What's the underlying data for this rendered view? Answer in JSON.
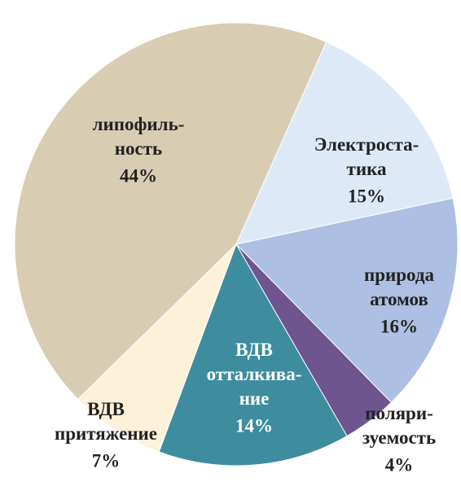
{
  "chart_data": {
    "type": "pie",
    "categories": [
      "Электроста-\nтика",
      "природа\nатомов",
      "поляри-\nзуемость",
      "ВДВ\nотталкива-\nние",
      "ВДВ\nпритяжение",
      "липофиль-\nность"
    ],
    "values": [
      15,
      16,
      4,
      14,
      7,
      44
    ],
    "value_labels": [
      "15%",
      "16%",
      "4%",
      "14%",
      "7%",
      "44%"
    ],
    "colors": [
      "#dde9f6",
      "#aebfe4",
      "#6e5590",
      "#3d8d9f",
      "#fdf1da",
      "#d8ccb3"
    ]
  }
}
